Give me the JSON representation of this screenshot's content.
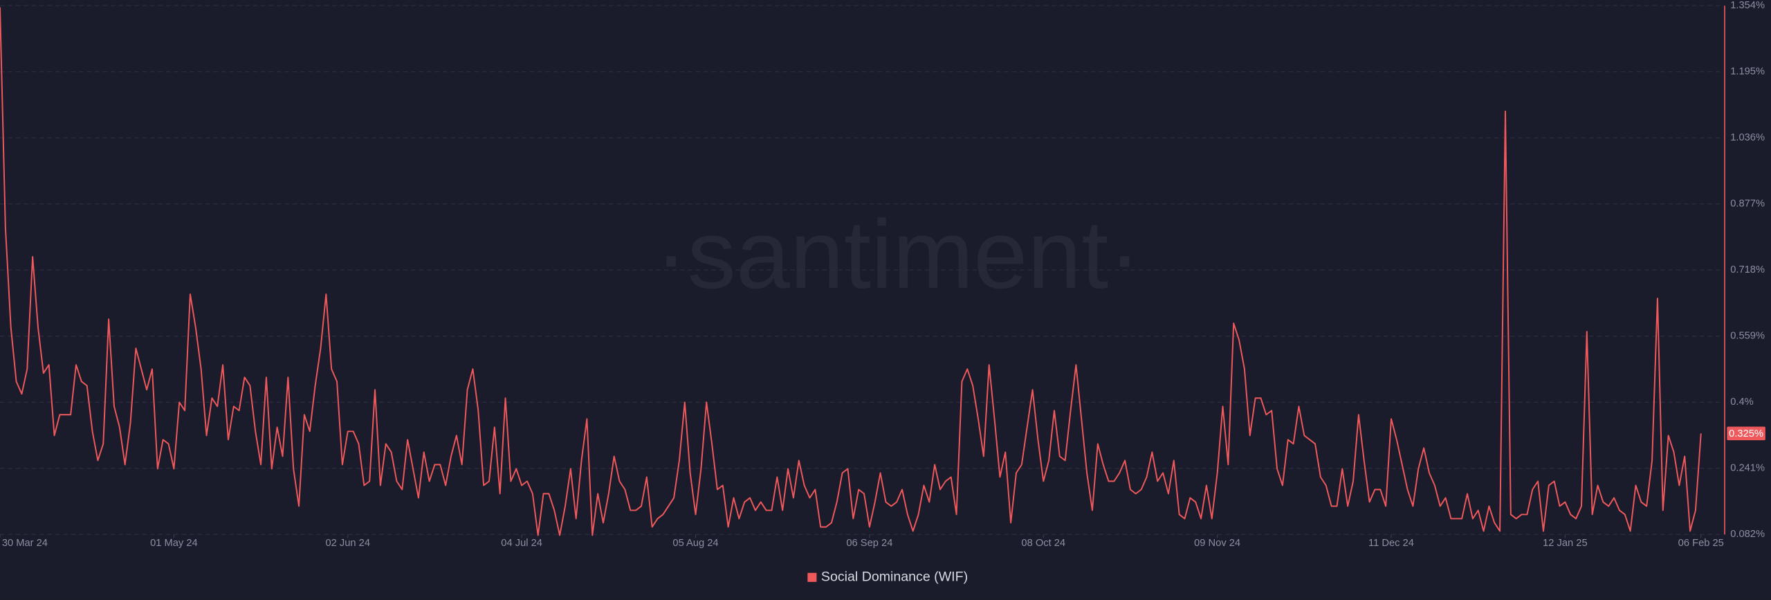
{
  "chart_data": {
    "type": "line",
    "watermark": "·santiment·",
    "x": [
      "30 Mar 24",
      "31 Mar 24",
      "01 Apr 24",
      "02 Apr 24",
      "03 Apr 24",
      "04 Apr 24",
      "05 Apr 24",
      "06 Apr 24",
      "07 Apr 24",
      "08 Apr 24",
      "09 Apr 24",
      "10 Apr 24",
      "11 Apr 24",
      "12 Apr 24",
      "13 Apr 24",
      "14 Apr 24",
      "15 Apr 24",
      "16 Apr 24",
      "17 Apr 24",
      "18 Apr 24",
      "19 Apr 24",
      "20 Apr 24",
      "21 Apr 24",
      "22 Apr 24",
      "23 Apr 24",
      "24 Apr 24",
      "25 Apr 24",
      "26 Apr 24",
      "27 Apr 24",
      "28 Apr 24",
      "29 Apr 24",
      "30 Apr 24",
      "01 May 24",
      "02 May 24",
      "03 May 24",
      "04 May 24",
      "05 May 24",
      "06 May 24",
      "07 May 24",
      "08 May 24",
      "09 May 24",
      "10 May 24",
      "11 May 24",
      "12 May 24",
      "13 May 24",
      "14 May 24",
      "15 May 24",
      "16 May 24",
      "17 May 24",
      "18 May 24",
      "19 May 24",
      "20 May 24",
      "21 May 24",
      "22 May 24",
      "23 May 24",
      "24 May 24",
      "25 May 24",
      "26 May 24",
      "27 May 24",
      "28 May 24",
      "29 May 24",
      "30 May 24",
      "31 May 24",
      "01 Jun 24",
      "02 Jun 24",
      "03 Jun 24",
      "04 Jun 24",
      "05 Jun 24",
      "06 Jun 24",
      "07 Jun 24",
      "08 Jun 24",
      "09 Jun 24",
      "10 Jun 24",
      "11 Jun 24",
      "12 Jun 24",
      "13 Jun 24",
      "14 Jun 24",
      "15 Jun 24",
      "16 Jun 24",
      "17 Jun 24",
      "18 Jun 24",
      "19 Jun 24",
      "20 Jun 24",
      "21 Jun 24",
      "22 Jun 24",
      "23 Jun 24",
      "24 Jun 24",
      "25 Jun 24",
      "26 Jun 24",
      "27 Jun 24",
      "28 Jun 24",
      "29 Jun 24",
      "30 Jun 24",
      "01 Jul 24",
      "02 Jul 24",
      "03 Jul 24",
      "04 Jul 24",
      "05 Jul 24",
      "06 Jul 24",
      "07 Jul 24",
      "08 Jul 24",
      "09 Jul 24",
      "10 Jul 24",
      "11 Jul 24",
      "12 Jul 24",
      "13 Jul 24",
      "14 Jul 24",
      "15 Jul 24",
      "16 Jul 24",
      "17 Jul 24",
      "18 Jul 24",
      "19 Jul 24",
      "20 Jul 24",
      "21 Jul 24",
      "22 Jul 24",
      "23 Jul 24",
      "24 Jul 24",
      "25 Jul 24",
      "26 Jul 24",
      "27 Jul 24",
      "28 Jul 24",
      "29 Jul 24",
      "30 Jul 24",
      "31 Jul 24",
      "01 Aug 24",
      "02 Aug 24",
      "03 Aug 24",
      "04 Aug 24",
      "05 Aug 24",
      "06 Aug 24",
      "07 Aug 24",
      "08 Aug 24",
      "09 Aug 24",
      "10 Aug 24",
      "11 Aug 24",
      "12 Aug 24",
      "13 Aug 24",
      "14 Aug 24",
      "15 Aug 24",
      "16 Aug 24",
      "17 Aug 24",
      "18 Aug 24",
      "19 Aug 24",
      "20 Aug 24",
      "21 Aug 24",
      "22 Aug 24",
      "23 Aug 24",
      "24 Aug 24",
      "25 Aug 24",
      "26 Aug 24",
      "27 Aug 24",
      "28 Aug 24",
      "29 Aug 24",
      "30 Aug 24",
      "31 Aug 24",
      "01 Sep 24",
      "02 Sep 24",
      "03 Sep 24",
      "04 Sep 24",
      "05 Sep 24",
      "06 Sep 24",
      "07 Sep 24",
      "08 Sep 24",
      "09 Sep 24",
      "10 Sep 24",
      "11 Sep 24",
      "12 Sep 24",
      "13 Sep 24",
      "14 Sep 24",
      "15 Sep 24",
      "16 Sep 24",
      "17 Sep 24",
      "18 Sep 24",
      "19 Sep 24",
      "20 Sep 24",
      "21 Sep 24",
      "22 Sep 24",
      "23 Sep 24",
      "24 Sep 24",
      "25 Sep 24",
      "26 Sep 24",
      "27 Sep 24",
      "28 Sep 24",
      "29 Sep 24",
      "30 Sep 24",
      "01 Oct 24",
      "02 Oct 24",
      "03 Oct 24",
      "04 Oct 24",
      "05 Oct 24",
      "06 Oct 24",
      "07 Oct 24",
      "08 Oct 24",
      "09 Oct 24",
      "10 Oct 24",
      "11 Oct 24",
      "12 Oct 24",
      "13 Oct 24",
      "14 Oct 24",
      "15 Oct 24",
      "16 Oct 24",
      "17 Oct 24",
      "18 Oct 24",
      "19 Oct 24",
      "20 Oct 24",
      "21 Oct 24",
      "22 Oct 24",
      "23 Oct 24",
      "24 Oct 24",
      "25 Oct 24",
      "26 Oct 24",
      "27 Oct 24",
      "28 Oct 24",
      "29 Oct 24",
      "30 Oct 24",
      "31 Oct 24",
      "01 Nov 24",
      "02 Nov 24",
      "03 Nov 24",
      "04 Nov 24",
      "05 Nov 24",
      "06 Nov 24",
      "07 Nov 24",
      "08 Nov 24",
      "09 Nov 24",
      "10 Nov 24",
      "11 Nov 24",
      "12 Nov 24",
      "13 Nov 24",
      "14 Nov 24",
      "15 Nov 24",
      "16 Nov 24",
      "17 Nov 24",
      "18 Nov 24",
      "19 Nov 24",
      "20 Nov 24",
      "21 Nov 24",
      "22 Nov 24",
      "23 Nov 24",
      "24 Nov 24",
      "25 Nov 24",
      "26 Nov 24",
      "27 Nov 24",
      "28 Nov 24",
      "29 Nov 24",
      "30 Nov 24",
      "01 Dec 24",
      "02 Dec 24",
      "03 Dec 24",
      "04 Dec 24",
      "05 Dec 24",
      "06 Dec 24",
      "07 Dec 24",
      "08 Dec 24",
      "09 Dec 24",
      "10 Dec 24",
      "11 Dec 24",
      "12 Dec 24",
      "13 Dec 24",
      "14 Dec 24",
      "15 Dec 24",
      "16 Dec 24",
      "17 Dec 24",
      "18 Dec 24",
      "19 Dec 24",
      "20 Dec 24",
      "21 Dec 24",
      "22 Dec 24",
      "23 Dec 24",
      "24 Dec 24",
      "25 Dec 24",
      "26 Dec 24",
      "27 Dec 24",
      "28 Dec 24",
      "29 Dec 24",
      "30 Dec 24",
      "31 Dec 24",
      "01 Jan 25",
      "02 Jan 25",
      "03 Jan 25",
      "04 Jan 25",
      "05 Jan 25",
      "06 Jan 25",
      "07 Jan 25",
      "08 Jan 25",
      "09 Jan 25",
      "10 Jan 25",
      "11 Jan 25",
      "12 Jan 25",
      "13 Jan 25",
      "14 Jan 25",
      "15 Jan 25",
      "16 Jan 25",
      "17 Jan 25",
      "18 Jan 25",
      "19 Jan 25",
      "20 Jan 25",
      "21 Jan 25",
      "22 Jan 25",
      "23 Jan 25",
      "24 Jan 25",
      "25 Jan 25",
      "26 Jan 25",
      "27 Jan 25",
      "28 Jan 25",
      "29 Jan 25",
      "30 Jan 25",
      "31 Jan 25",
      "01 Feb 25",
      "02 Feb 25",
      "03 Feb 25",
      "04 Feb 25",
      "05 Feb 25",
      "06 Feb 25"
    ],
    "series": [
      {
        "name": "Social Dominance (WIF)",
        "color": "#f0595c",
        "last_label": "0.325%",
        "values": [
          1.35,
          0.82,
          0.58,
          0.45,
          0.42,
          0.48,
          0.75,
          0.58,
          0.47,
          0.49,
          0.32,
          0.37,
          0.37,
          0.37,
          0.49,
          0.45,
          0.44,
          0.33,
          0.26,
          0.3,
          0.6,
          0.39,
          0.34,
          0.25,
          0.35,
          0.53,
          0.48,
          0.43,
          0.48,
          0.24,
          0.31,
          0.3,
          0.24,
          0.4,
          0.38,
          0.66,
          0.58,
          0.48,
          0.32,
          0.41,
          0.39,
          0.49,
          0.31,
          0.39,
          0.38,
          0.46,
          0.44,
          0.33,
          0.25,
          0.46,
          0.24,
          0.34,
          0.27,
          0.46,
          0.24,
          0.15,
          0.37,
          0.33,
          0.44,
          0.53,
          0.66,
          0.48,
          0.45,
          0.25,
          0.33,
          0.33,
          0.3,
          0.2,
          0.21,
          0.43,
          0.2,
          0.3,
          0.28,
          0.21,
          0.19,
          0.31,
          0.24,
          0.17,
          0.28,
          0.21,
          0.25,
          0.25,
          0.2,
          0.27,
          0.32,
          0.25,
          0.43,
          0.48,
          0.38,
          0.2,
          0.21,
          0.34,
          0.18,
          0.41,
          0.21,
          0.24,
          0.2,
          0.21,
          0.18,
          0.08,
          0.18,
          0.18,
          0.14,
          0.08,
          0.15,
          0.24,
          0.12,
          0.26,
          0.36,
          0.08,
          0.18,
          0.11,
          0.18,
          0.27,
          0.21,
          0.19,
          0.14,
          0.14,
          0.15,
          0.22,
          0.1,
          0.12,
          0.13,
          0.15,
          0.17,
          0.26,
          0.4,
          0.23,
          0.13,
          0.24,
          0.4,
          0.3,
          0.19,
          0.2,
          0.1,
          0.17,
          0.12,
          0.16,
          0.17,
          0.14,
          0.16,
          0.14,
          0.14,
          0.22,
          0.14,
          0.24,
          0.17,
          0.26,
          0.2,
          0.17,
          0.19,
          0.1,
          0.1,
          0.11,
          0.16,
          0.23,
          0.24,
          0.12,
          0.19,
          0.18,
          0.1,
          0.16,
          0.23,
          0.16,
          0.15,
          0.16,
          0.19,
          0.13,
          0.09,
          0.13,
          0.2,
          0.16,
          0.25,
          0.19,
          0.21,
          0.22,
          0.13,
          0.45,
          0.48,
          0.44,
          0.36,
          0.27,
          0.49,
          0.36,
          0.22,
          0.28,
          0.11,
          0.23,
          0.25,
          0.34,
          0.43,
          0.31,
          0.21,
          0.26,
          0.38,
          0.27,
          0.26,
          0.38,
          0.49,
          0.36,
          0.23,
          0.14,
          0.3,
          0.25,
          0.21,
          0.21,
          0.23,
          0.26,
          0.19,
          0.18,
          0.19,
          0.22,
          0.28,
          0.21,
          0.23,
          0.18,
          0.26,
          0.13,
          0.12,
          0.17,
          0.16,
          0.12,
          0.2,
          0.12,
          0.23,
          0.39,
          0.25,
          0.59,
          0.55,
          0.48,
          0.32,
          0.41,
          0.41,
          0.37,
          0.38,
          0.24,
          0.2,
          0.31,
          0.3,
          0.39,
          0.32,
          0.31,
          0.3,
          0.22,
          0.2,
          0.15,
          0.15,
          0.24,
          0.15,
          0.21,
          0.37,
          0.26,
          0.16,
          0.19,
          0.19,
          0.15,
          0.36,
          0.31,
          0.25,
          0.19,
          0.15,
          0.24,
          0.29,
          0.23,
          0.2,
          0.15,
          0.17,
          0.12,
          0.12,
          0.12,
          0.18,
          0.12,
          0.14,
          0.09,
          0.15,
          0.11,
          0.09,
          1.1,
          0.13,
          0.12,
          0.13,
          0.13,
          0.19,
          0.21,
          0.09,
          0.2,
          0.21,
          0.15,
          0.16,
          0.13,
          0.12,
          0.15,
          0.57,
          0.13,
          0.2,
          0.16,
          0.15,
          0.17,
          0.14,
          0.13,
          0.09,
          0.2,
          0.16,
          0.15,
          0.26,
          0.65,
          0.14,
          0.32,
          0.28,
          0.2,
          0.27,
          0.09,
          0.14,
          0.325
        ]
      }
    ],
    "xticks": [
      "30 Mar 24",
      "01 May 24",
      "02 Jun 24",
      "04 Jul 24",
      "05 Aug 24",
      "06 Sep 24",
      "08 Oct 24",
      "09 Nov 24",
      "11 Dec 24",
      "12 Jan 25",
      "06 Feb 25"
    ],
    "ylim": [
      0.082,
      1.354
    ],
    "yticks": [
      {
        "value": 0.082,
        "label": "0.082%"
      },
      {
        "value": 0.241,
        "label": "0.241%"
      },
      {
        "value": 0.4,
        "label": "0.4%"
      },
      {
        "value": 0.559,
        "label": "0.559%"
      },
      {
        "value": 0.718,
        "label": "0.718%"
      },
      {
        "value": 0.877,
        "label": "0.877%"
      },
      {
        "value": 1.036,
        "label": "1.036%"
      },
      {
        "value": 1.195,
        "label": "1.195%"
      },
      {
        "value": 1.354,
        "label": "1.354%"
      }
    ],
    "grid": true
  }
}
